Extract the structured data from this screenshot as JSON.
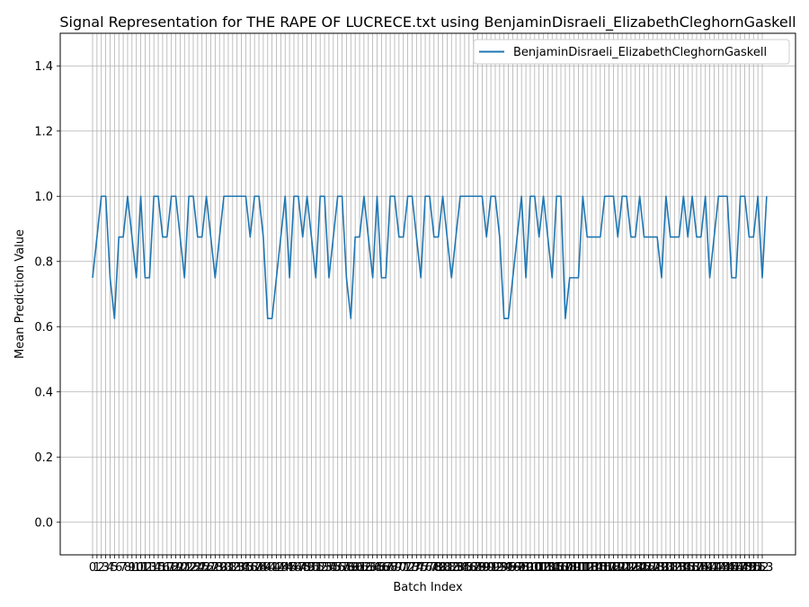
{
  "chart_data": {
    "type": "line",
    "title": "Signal Representation for THE RAPE OF LUCRECE.txt using BenjaminDisraeli_ElizabethCleghornGaskell",
    "xlabel": "Batch Index",
    "ylabel": "Mean Prediction Value",
    "xlim": [
      0,
      153
    ],
    "ylim": [
      -0.1,
      1.5
    ],
    "yticks": [
      0.0,
      0.2,
      0.4,
      0.6,
      0.8,
      1.0,
      1.2,
      1.4
    ],
    "ytick_labels": [
      "0.0",
      "0.2",
      "0.4",
      "0.6",
      "0.8",
      "1.0",
      "1.2",
      "1.4"
    ],
    "xticks": [
      0,
      1,
      2,
      3,
      4,
      5,
      6,
      7,
      8,
      9,
      10,
      11,
      12,
      13,
      14,
      15,
      16,
      17,
      18,
      19,
      20,
      21,
      22,
      23,
      24,
      25,
      26,
      27,
      28,
      29,
      30,
      31,
      32,
      33,
      34,
      35,
      36,
      37,
      38,
      39,
      40,
      41,
      42,
      43,
      44,
      45,
      46,
      47,
      48,
      49,
      50,
      51,
      52,
      53,
      54,
      55,
      56,
      57,
      58,
      59,
      60,
      61,
      62,
      63,
      64,
      65,
      66,
      67,
      68,
      69,
      70,
      71,
      72,
      73,
      74,
      75,
      76,
      77,
      78,
      79,
      80,
      81,
      82,
      83,
      84,
      85,
      86,
      87,
      88,
      89,
      90,
      91,
      92,
      93,
      94,
      95,
      96,
      97,
      98,
      99,
      100,
      101,
      102,
      103,
      104,
      105,
      106,
      107,
      108,
      109,
      110,
      111,
      112,
      113,
      114,
      115,
      116,
      117,
      118,
      119,
      120,
      121,
      122,
      123,
      124,
      125,
      126,
      127,
      128,
      129,
      130,
      131,
      132,
      133,
      134,
      135,
      136,
      137,
      138,
      139,
      140,
      141,
      142,
      143,
      144,
      145,
      146,
      147,
      148,
      149,
      150,
      151,
      152,
      153
    ],
    "grid": true,
    "legend_position": "top-right",
    "series": [
      {
        "name": "BenjaminDisraeli_ElizabethCleghornGaskell",
        "color": "#1f77b4",
        "values": [
          0.75,
          0.875,
          1.0,
          1.0,
          0.75,
          0.625,
          0.875,
          0.875,
          1.0,
          0.875,
          0.75,
          1.0,
          0.75,
          0.75,
          1.0,
          1.0,
          0.875,
          0.875,
          1.0,
          1.0,
          0.875,
          0.75,
          1.0,
          1.0,
          0.875,
          0.875,
          1.0,
          0.875,
          0.75,
          0.875,
          1.0,
          1.0,
          1.0,
          1.0,
          1.0,
          1.0,
          0.875,
          1.0,
          1.0,
          0.875,
          0.625,
          0.625,
          0.75,
          0.875,
          1.0,
          0.75,
          1.0,
          1.0,
          0.875,
          1.0,
          0.875,
          0.75,
          1.0,
          1.0,
          0.75,
          0.875,
          1.0,
          1.0,
          0.75,
          0.625,
          0.875,
          0.875,
          1.0,
          0.875,
          0.75,
          1.0,
          0.75,
          0.75,
          1.0,
          1.0,
          0.875,
          0.875,
          1.0,
          1.0,
          0.875,
          0.75,
          1.0,
          1.0,
          0.875,
          0.875,
          1.0,
          0.875,
          0.75,
          0.875,
          1.0,
          1.0,
          1.0,
          1.0,
          1.0,
          1.0,
          0.875,
          1.0,
          1.0,
          0.875,
          0.625,
          0.625,
          0.75,
          0.875,
          1.0,
          0.75,
          1.0,
          1.0,
          0.875,
          1.0,
          0.875,
          0.75,
          1.0,
          1.0,
          0.625,
          0.75,
          0.75,
          0.75,
          1.0,
          0.875,
          0.875,
          0.875,
          0.875,
          1.0,
          1.0,
          1.0,
          0.875,
          1.0,
          1.0,
          0.875,
          0.875,
          1.0,
          0.875,
          0.875,
          0.875,
          0.875,
          0.75,
          1.0,
          0.875,
          0.875,
          0.875,
          1.0,
          0.875,
          1.0,
          0.875,
          0.875,
          1.0,
          0.75,
          0.875,
          1.0,
          1.0,
          1.0,
          0.75,
          0.75,
          1.0,
          1.0,
          0.875,
          0.875,
          1.0,
          0.75,
          1.0
        ]
      }
    ]
  }
}
